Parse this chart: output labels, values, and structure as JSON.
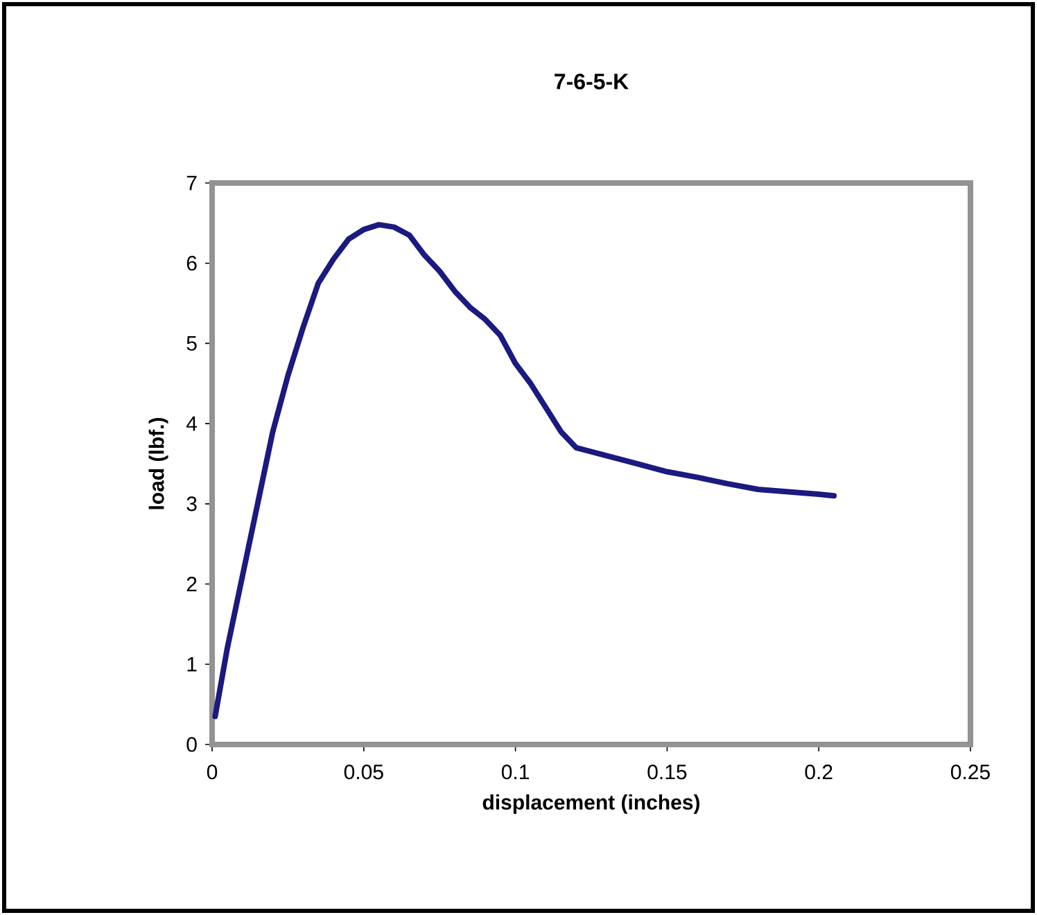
{
  "chart_data": {
    "type": "line",
    "title": "7-6-5-K",
    "xlabel": "displacement (inches)",
    "ylabel": "load (lbf.)",
    "xlim": [
      0,
      0.25
    ],
    "ylim": [
      0,
      7
    ],
    "xticks": [
      0,
      0.05,
      0.1,
      0.15,
      0.2,
      0.25
    ],
    "yticks": [
      0,
      1,
      2,
      3,
      4,
      5,
      6,
      7
    ],
    "grid": false,
    "series": [
      {
        "color": "#1a1a80",
        "x": [
          0.001,
          0.005,
          0.01,
          0.015,
          0.02,
          0.025,
          0.03,
          0.035,
          0.04,
          0.045,
          0.05,
          0.055,
          0.06,
          0.065,
          0.07,
          0.075,
          0.08,
          0.085,
          0.09,
          0.095,
          0.1,
          0.105,
          0.11,
          0.115,
          0.12,
          0.13,
          0.14,
          0.15,
          0.16,
          0.17,
          0.18,
          0.19,
          0.2,
          0.205
        ],
        "values": [
          0.35,
          1.2,
          2.1,
          3.0,
          3.9,
          4.6,
          5.2,
          5.75,
          6.05,
          6.3,
          6.42,
          6.48,
          6.45,
          6.35,
          6.1,
          5.9,
          5.65,
          5.45,
          5.3,
          5.1,
          4.75,
          4.5,
          4.2,
          3.9,
          3.7,
          3.6,
          3.5,
          3.4,
          3.33,
          3.25,
          3.18,
          3.15,
          3.12,
          3.1
        ]
      }
    ]
  }
}
